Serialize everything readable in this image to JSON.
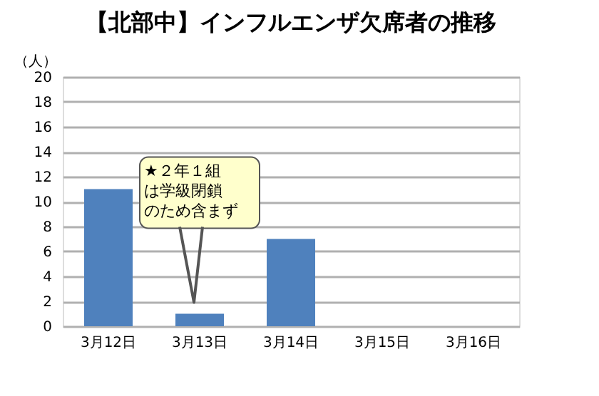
{
  "chart_data": {
    "type": "bar",
    "title": "【北部中】インフルエンザ欠席者の推移",
    "ylabel": "（人）",
    "categories": [
      "3月12日",
      "3月13日",
      "3月14日",
      "3月15日",
      "3月16日"
    ],
    "values": [
      11,
      1,
      7,
      null,
      null
    ],
    "color": "#4f81bd",
    "ylim": [
      0,
      20
    ],
    "yticks": [
      0,
      2,
      4,
      6,
      8,
      10,
      12,
      14,
      16,
      18,
      20
    ],
    "grid": "y",
    "annotations": [
      "★２年１組",
      "は学級閉鎖",
      "のため含まず"
    ]
  }
}
